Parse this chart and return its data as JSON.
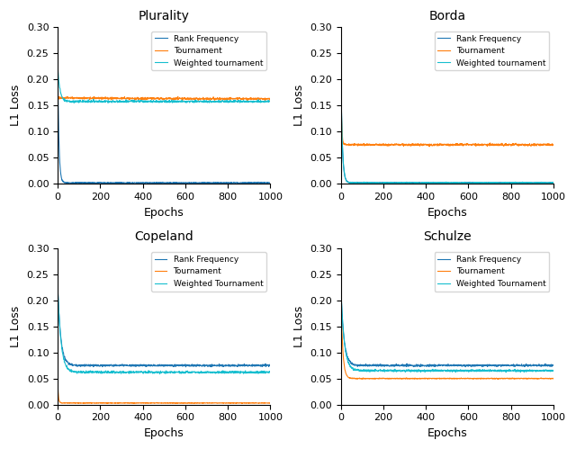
{
  "titles": [
    "Plurality",
    "Borda",
    "Copeland",
    "Schulze"
  ],
  "colors": [
    "#1f77b4",
    "#ff7f0e",
    "#17becf"
  ],
  "xlabel": "Epochs",
  "ylabel": "L1 Loss",
  "ylim": [
    0.0,
    0.3
  ],
  "xlim": [
    0,
    1000
  ],
  "panels": [
    {
      "legend": [
        "Rank Frequency",
        "Tournament",
        "Weighted tournament"
      ],
      "curves": [
        {
          "start": 0.225,
          "end": 0.002,
          "decay": 0.18,
          "noise": 0.0005
        },
        {
          "start": 0.165,
          "end": 0.163,
          "decay": 0.003,
          "noise": 0.001
        },
        {
          "start": 0.225,
          "end": 0.158,
          "decay": 0.1,
          "noise": 0.001
        }
      ]
    },
    {
      "legend": [
        "Rank Frequency",
        "Tournament",
        "Weighted tournament"
      ],
      "curves": [
        {
          "start": 0.235,
          "end": 0.002,
          "decay": 0.15,
          "noise": 0.0005
        },
        {
          "start": 0.235,
          "end": 0.075,
          "decay": 0.3,
          "noise": 0.001
        },
        {
          "start": 0.235,
          "end": 0.002,
          "decay": 0.15,
          "noise": 0.0005
        }
      ]
    },
    {
      "legend": [
        "Rank Frequency",
        "Tournament",
        "Weighted Tournament"
      ],
      "curves": [
        {
          "start": 0.225,
          "end": 0.075,
          "decay": 0.07,
          "noise": 0.001
        },
        {
          "start": 0.04,
          "end": 0.003,
          "decay": 0.3,
          "noise": 0.0003
        },
        {
          "start": 0.225,
          "end": 0.062,
          "decay": 0.065,
          "noise": 0.001
        }
      ]
    },
    {
      "legend": [
        "Rank Frequency",
        "Tournament",
        "Weighted Tournament"
      ],
      "curves": [
        {
          "start": 0.23,
          "end": 0.075,
          "decay": 0.07,
          "noise": 0.001
        },
        {
          "start": 0.23,
          "end": 0.05,
          "decay": 0.12,
          "noise": 0.0004
        },
        {
          "start": 0.23,
          "end": 0.065,
          "decay": 0.065,
          "noise": 0.001
        }
      ]
    }
  ]
}
